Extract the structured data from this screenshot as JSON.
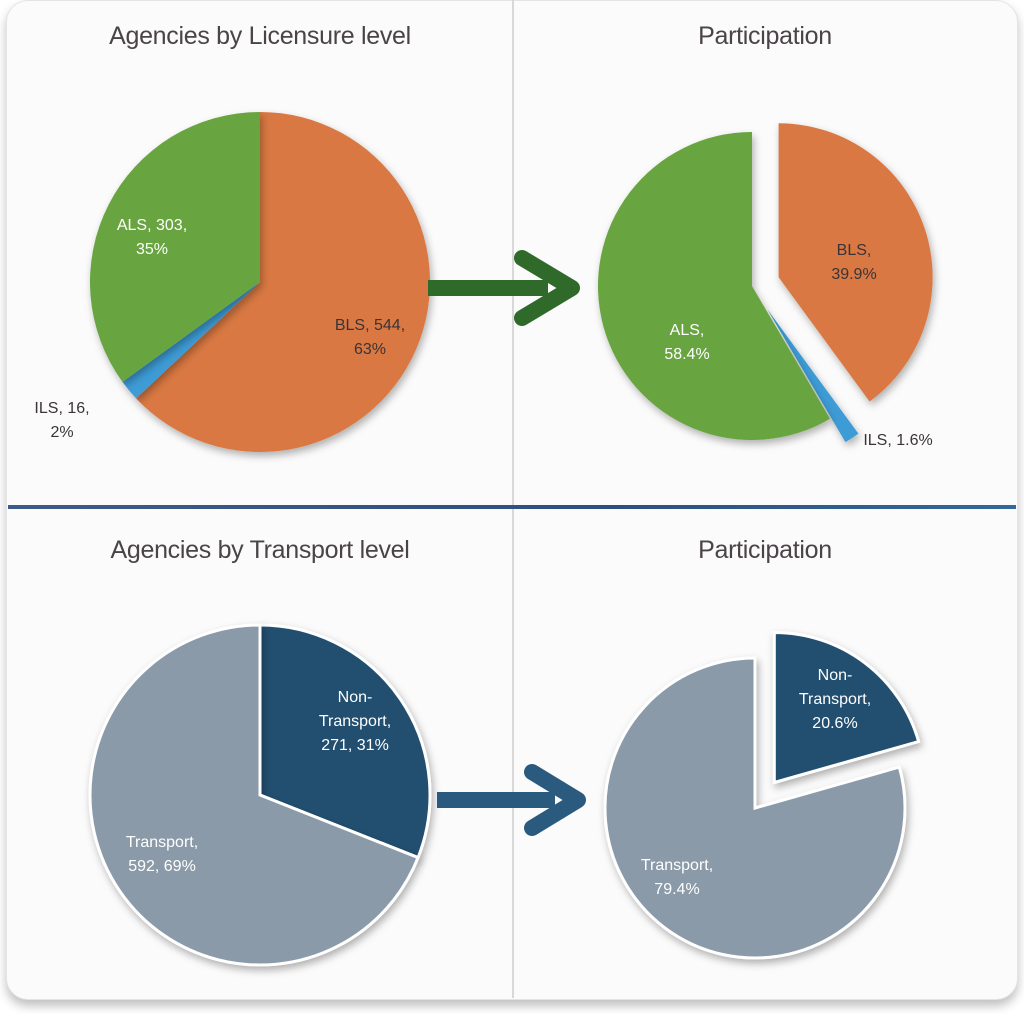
{
  "chart_data": [
    {
      "type": "pie",
      "title": "Agencies by Licensure level",
      "slices": [
        {
          "label": "BLS",
          "count": 544,
          "percent": 63,
          "text": [
            "BLS, 544,",
            "63%"
          ],
          "color": "#d97843"
        },
        {
          "label": "ILS",
          "count": 16,
          "percent": 2,
          "text": [
            "ILS, 16,",
            "2%"
          ],
          "color": "#3e9bd5"
        },
        {
          "label": "ALS",
          "count": 303,
          "percent": 35,
          "text": [
            "ALS, 303,",
            "35%"
          ],
          "color": "#68a541"
        }
      ]
    },
    {
      "type": "pie",
      "title": "Participation",
      "exploded": [
        "BLS",
        "ILS"
      ],
      "slices": [
        {
          "label": "BLS",
          "percent": 39.9,
          "text": [
            "BLS,",
            "39.9%"
          ],
          "color": "#d97843"
        },
        {
          "label": "ILS",
          "percent": 1.6,
          "text": [
            "ILS, 1.6%"
          ],
          "color": "#3e9bd5"
        },
        {
          "label": "ALS",
          "percent": 58.4,
          "text": [
            "ALS,",
            "58.4%"
          ],
          "color": "#68a541"
        }
      ]
    },
    {
      "type": "pie",
      "title": "Agencies by Transport level",
      "slices": [
        {
          "label": "Non-Transport",
          "count": 271,
          "percent": 31,
          "text": [
            "Non-",
            "Transport,",
            "271, 31%"
          ],
          "color": "#22506f"
        },
        {
          "label": "Transport",
          "count": 592,
          "percent": 69,
          "text": [
            "Transport,",
            "592, 69%"
          ],
          "color": "#8a9aa9"
        }
      ]
    },
    {
      "type": "pie",
      "title": "Participation",
      "exploded": [
        "Non-Transport"
      ],
      "slices": [
        {
          "label": "Non-Transport",
          "percent": 20.6,
          "text": [
            "Non-",
            "Transport,",
            "20.6%"
          ],
          "color": "#22506f"
        },
        {
          "label": "Transport",
          "percent": 79.4,
          "text": [
            "Transport,",
            "79.4%"
          ],
          "color": "#8a9aa9"
        }
      ]
    }
  ],
  "arrow_colors": [
    "#2f6a2a",
    "#2a5a7e"
  ]
}
